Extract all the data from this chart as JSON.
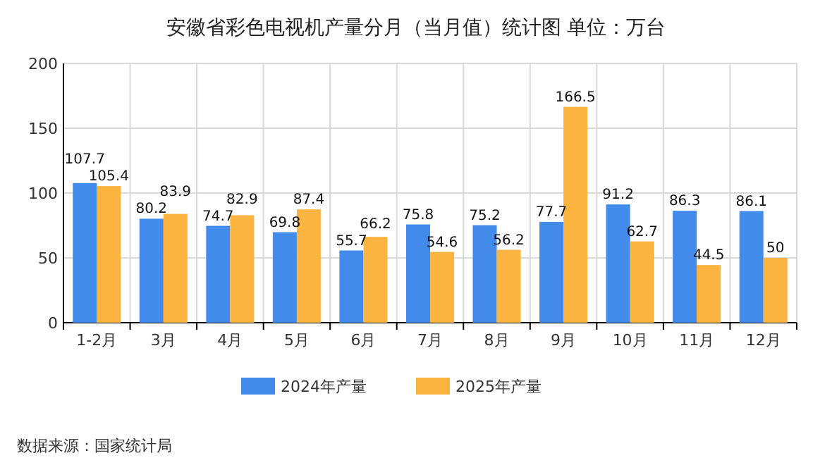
{
  "chart_data": {
    "type": "bar",
    "title": "安徽省彩色电视机产量分月（当月值）统计图 单位：万台",
    "categories": [
      "1-2月",
      "3月",
      "4月",
      "5月",
      "6月",
      "7月",
      "8月",
      "9月",
      "10月",
      "11月",
      "12月"
    ],
    "series": [
      {
        "name": "2024年产量",
        "color": "#428bea",
        "values": [
          107.7,
          80.2,
          74.7,
          69.8,
          55.7,
          75.8,
          75.2,
          77.7,
          91.2,
          86.3,
          86.1
        ]
      },
      {
        "name": "2025年产量",
        "color": "#fbb440",
        "values": [
          105.4,
          83.9,
          82.9,
          87.4,
          66.2,
          54.6,
          56.2,
          166.5,
          62.7,
          44.5,
          50
        ]
      }
    ],
    "ylim": [
      0,
      200
    ],
    "yticks": [
      0,
      50,
      100,
      150,
      200
    ],
    "grid": true,
    "legend": "bottom",
    "data_labels": true,
    "annotations": [
      "数据来源：国家统计局"
    ]
  }
}
